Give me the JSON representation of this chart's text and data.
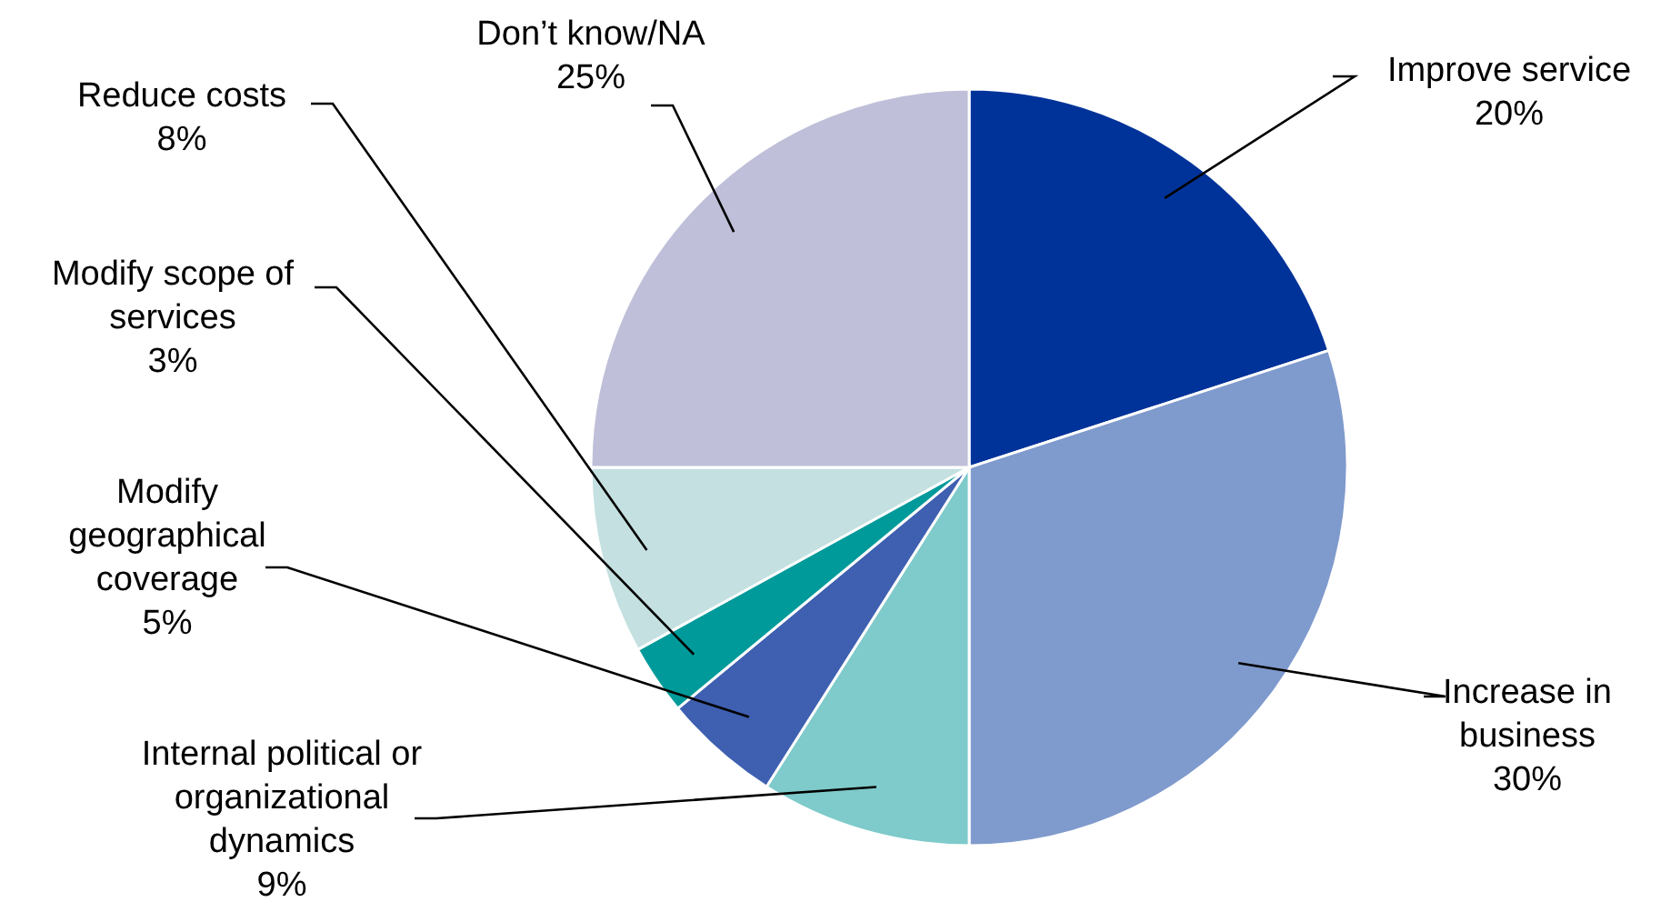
{
  "chart_data": {
    "type": "pie",
    "categories": [
      "Improve service",
      "Increase in business",
      "Internal political or organizational dynamics",
      "Modify geographical coverage",
      "Modify scope of services",
      "Reduce costs",
      "Don’t know/NA"
    ],
    "values": [
      20,
      30,
      9,
      5,
      3,
      8,
      25
    ],
    "value_labels": [
      "20%",
      "30%",
      "9%",
      "5%",
      "3%",
      "8%",
      "25%"
    ],
    "colors": [
      "#003399",
      "#7f9acc",
      "#7fcaca",
      "#3f5fb0",
      "#009a9a",
      "#c4e0e0",
      "#bfbfd9"
    ]
  }
}
